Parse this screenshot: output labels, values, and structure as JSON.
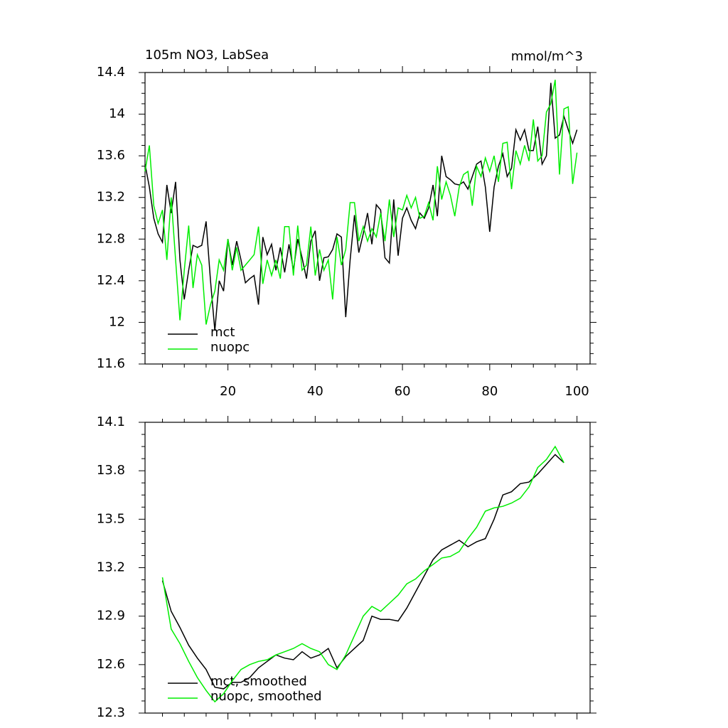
{
  "chart_data": [
    {
      "type": "line",
      "title": "105m NO3, LabSea",
      "subtitle": "mmol/m^3",
      "x": [
        1,
        2,
        3,
        4,
        5,
        6,
        7,
        8,
        9,
        10,
        11,
        12,
        13,
        14,
        15,
        16,
        17,
        18,
        19,
        20,
        21,
        22,
        23,
        24,
        25,
        26,
        27,
        28,
        29,
        30,
        31,
        32,
        33,
        34,
        35,
        36,
        37,
        38,
        39,
        40,
        41,
        42,
        43,
        44,
        45,
        46,
        47,
        48,
        49,
        50,
        51,
        52,
        53,
        54,
        55,
        56,
        57,
        58,
        59,
        60,
        61,
        62,
        63,
        64,
        65,
        66,
        67,
        68,
        69,
        70,
        71,
        72,
        73,
        74,
        75,
        76,
        77,
        78,
        79,
        80,
        81,
        82,
        83,
        84,
        85,
        86,
        87,
        88,
        89,
        90,
        91,
        92,
        93,
        94,
        95,
        96,
        97,
        98,
        99,
        100
      ],
      "series": [
        {
          "name": "mct",
          "color": "#000000",
          "values": [
            13.52,
            13.3,
            13.0,
            12.85,
            12.77,
            13.32,
            13.05,
            13.35,
            12.6,
            12.22,
            12.5,
            12.74,
            12.72,
            12.74,
            12.97,
            12.4,
            11.92,
            12.4,
            12.3,
            12.8,
            12.55,
            12.78,
            12.6,
            12.38,
            12.42,
            12.45,
            12.17,
            12.82,
            12.65,
            12.75,
            12.5,
            12.72,
            12.48,
            12.75,
            12.5,
            12.8,
            12.62,
            12.42,
            12.78,
            12.88,
            12.4,
            12.62,
            12.63,
            12.7,
            12.85,
            12.82,
            12.05,
            12.6,
            13.03,
            12.67,
            12.85,
            13.05,
            12.75,
            13.13,
            13.08,
            12.62,
            12.57,
            13.18,
            12.64,
            13.0,
            13.1,
            12.98,
            12.9,
            13.05,
            13.0,
            13.1,
            13.32,
            13.02,
            13.6,
            13.4,
            13.37,
            13.33,
            13.32,
            13.35,
            13.28,
            13.4,
            13.52,
            13.55,
            13.3,
            12.87,
            13.3,
            13.5,
            13.62,
            13.4,
            13.48,
            13.85,
            13.75,
            13.85,
            13.65,
            13.65,
            13.88,
            13.52,
            13.6,
            14.3,
            13.77,
            13.8,
            13.98,
            13.85,
            13.72,
            13.85
          ]
        },
        {
          "name": "nuopc",
          "color": "#00ee00",
          "values": [
            13.45,
            13.7,
            13.12,
            12.95,
            13.08,
            12.6,
            13.2,
            12.6,
            12.02,
            12.5,
            12.93,
            12.33,
            12.65,
            12.55,
            11.98,
            12.17,
            12.3,
            12.6,
            12.5,
            12.8,
            12.5,
            12.72,
            12.5,
            12.55,
            12.6,
            12.65,
            12.92,
            12.37,
            12.6,
            12.45,
            12.6,
            12.42,
            12.92,
            12.92,
            12.45,
            12.93,
            12.5,
            12.55,
            12.92,
            12.45,
            12.7,
            12.5,
            12.6,
            12.22,
            12.82,
            12.55,
            12.7,
            13.15,
            13.15,
            12.78,
            12.92,
            12.78,
            12.9,
            12.82,
            13.05,
            12.78,
            13.18,
            12.82,
            13.1,
            13.08,
            13.22,
            13.1,
            13.2,
            13.0,
            13.02,
            13.15,
            12.98,
            13.5,
            13.18,
            13.35,
            13.22,
            13.02,
            13.3,
            13.42,
            13.45,
            13.12,
            13.5,
            13.4,
            13.58,
            13.45,
            13.6,
            13.35,
            13.72,
            13.73,
            13.28,
            13.65,
            13.52,
            13.7,
            13.55,
            13.95,
            13.55,
            13.6,
            14.02,
            14.1,
            14.33,
            13.42,
            14.05,
            14.07,
            13.33,
            13.63
          ]
        }
      ],
      "xlim": [
        1,
        103
      ],
      "xticks": [
        20,
        40,
        60,
        80,
        100
      ],
      "ylim": [
        11.6,
        14.4
      ],
      "yticks": [
        11.6,
        12.0,
        12.4,
        12.8,
        13.2,
        13.6,
        14.0,
        14.4
      ]
    },
    {
      "type": "line",
      "x": [
        5,
        7,
        9,
        11,
        13,
        15,
        17,
        19,
        21,
        23,
        25,
        27,
        29,
        31,
        33,
        35,
        37,
        39,
        41,
        43,
        45,
        47,
        49,
        51,
        53,
        55,
        57,
        59,
        61,
        63,
        65,
        67,
        69,
        71,
        73,
        75,
        77,
        79,
        81,
        83,
        85,
        87,
        89,
        91,
        93,
        95,
        97
      ],
      "series": [
        {
          "name": "mct, smoothed",
          "color": "#000000",
          "values": [
            13.12,
            12.93,
            12.83,
            12.72,
            12.64,
            12.57,
            12.46,
            12.45,
            12.49,
            12.49,
            12.52,
            12.58,
            12.62,
            12.66,
            12.64,
            12.63,
            12.68,
            12.64,
            12.66,
            12.7,
            12.58,
            12.65,
            12.7,
            12.75,
            12.9,
            12.88,
            12.88,
            12.87,
            12.95,
            13.05,
            13.15,
            13.25,
            13.31,
            13.34,
            13.37,
            13.33,
            13.36,
            13.38,
            13.5,
            13.65,
            13.67,
            13.72,
            13.73,
            13.78,
            13.84,
            13.9,
            13.85
          ]
        },
        {
          "name": "nuopc, smoothed",
          "color": "#00ee00",
          "values": [
            13.14,
            12.82,
            12.73,
            12.62,
            12.52,
            12.44,
            12.37,
            12.42,
            12.5,
            12.57,
            12.6,
            12.62,
            12.63,
            12.66,
            12.68,
            12.7,
            12.73,
            12.7,
            12.68,
            12.6,
            12.57,
            12.66,
            12.78,
            12.9,
            12.96,
            12.93,
            12.98,
            13.03,
            13.1,
            13.13,
            13.18,
            13.22,
            13.26,
            13.27,
            13.3,
            13.38,
            13.45,
            13.55,
            13.57,
            13.58,
            13.6,
            13.63,
            13.7,
            13.82,
            13.87,
            13.95,
            13.85
          ]
        }
      ],
      "xlim": [
        1,
        103
      ],
      "xticks": [
        20,
        40,
        60,
        80,
        100
      ],
      "ylim": [
        12.3,
        14.1
      ],
      "yticks": [
        12.3,
        12.6,
        12.9,
        13.2,
        13.5,
        13.8,
        14.1
      ]
    }
  ]
}
